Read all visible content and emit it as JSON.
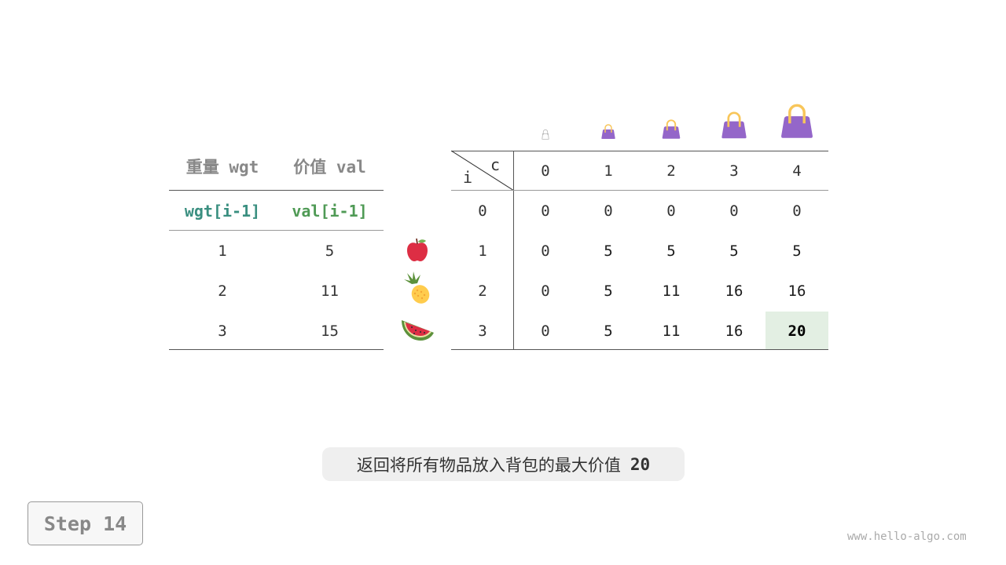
{
  "items_table": {
    "headers": [
      "重量 wgt",
      "价值 val"
    ],
    "subheaders": [
      "wgt[i-1]",
      "val[i-1]"
    ],
    "rows": [
      {
        "wgt": "1",
        "val": "5",
        "icon": "apple-icon"
      },
      {
        "wgt": "2",
        "val": "11",
        "icon": "pineapple-icon"
      },
      {
        "wgt": "3",
        "val": "15",
        "icon": "watermelon-icon"
      }
    ]
  },
  "dp_table": {
    "corner_col_label": "c",
    "corner_row_label": "i",
    "capacities": [
      "0",
      "1",
      "2",
      "3",
      "4"
    ],
    "row_indices": [
      "0",
      "1",
      "2",
      "3"
    ],
    "cells": [
      [
        "0",
        "0",
        "0",
        "0",
        "0"
      ],
      [
        "0",
        "5",
        "5",
        "5",
        "5"
      ],
      [
        "0",
        "5",
        "11",
        "16",
        "16"
      ],
      [
        "0",
        "5",
        "11",
        "16",
        "20"
      ]
    ],
    "highlight": {
      "row": 3,
      "col": 4,
      "color": "#e3efe3"
    },
    "bag_icons": [
      "bag-outline-icon",
      "bag-icon",
      "bag-icon",
      "bag-icon",
      "bag-icon"
    ]
  },
  "colors": {
    "bag": "#9466c9",
    "bag_handle": "#f8c65a",
    "teal": "#3a8f80",
    "green": "#4f9a55"
  },
  "caption": {
    "text": "返回将所有物品放入背包的最大价值",
    "value": "20"
  },
  "step_label": "Step 14",
  "watermark": "www.hello-algo.com"
}
